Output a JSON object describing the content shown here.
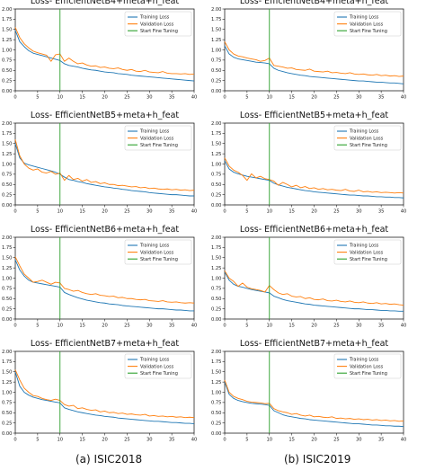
{
  "captions": {
    "left": "(a) ISIC2018",
    "right": "(b) ISIC2019"
  },
  "colors": {
    "training": "#1f77b4",
    "validation": "#ff7f0e",
    "fine_tuning": "#2ca02c"
  },
  "chart_data": [
    {
      "type": "line",
      "title": "Loss- EfficientNetB4+meta+h_feat",
      "dataset": "ISIC2018",
      "xlim": [
        0,
        40
      ],
      "ylim": [
        0,
        2.0
      ],
      "xticks": [
        "0",
        "5",
        "10",
        "15",
        "20",
        "25",
        "30",
        "35",
        "40"
      ],
      "yticks": [
        "0.00",
        "0.25",
        "0.50",
        "0.75",
        "1.00",
        "1.25",
        "1.50",
        "1.75",
        "2.00"
      ],
      "legend": [
        "Training Loss",
        "Validation Loss",
        "Start Fine Tuning"
      ],
      "legend_position": "top-right",
      "fine_tuning_epoch": 10,
      "series": [
        {
          "name": "Training Loss",
          "values": [
            1.48,
            1.2,
            1.08,
            0.98,
            0.92,
            0.89,
            0.86,
            0.83,
            0.8,
            0.77,
            0.74,
            0.66,
            0.62,
            0.6,
            0.58,
            0.55,
            0.53,
            0.51,
            0.5,
            0.48,
            0.46,
            0.45,
            0.44,
            0.42,
            0.41,
            0.4,
            0.38,
            0.37,
            0.36,
            0.35,
            0.34,
            0.33,
            0.32,
            0.31,
            0.3,
            0.29,
            0.28,
            0.27,
            0.26,
            0.25,
            0.24
          ]
        },
        {
          "name": "Validation Loss",
          "values": [
            1.55,
            1.3,
            1.15,
            1.05,
            0.97,
            0.93,
            0.9,
            0.87,
            0.72,
            0.88,
            0.9,
            0.72,
            0.8,
            0.72,
            0.66,
            0.68,
            0.63,
            0.6,
            0.61,
            0.57,
            0.58,
            0.55,
            0.54,
            0.56,
            0.52,
            0.5,
            0.52,
            0.48,
            0.47,
            0.5,
            0.46,
            0.45,
            0.44,
            0.47,
            0.43,
            0.42,
            0.42,
            0.41,
            0.42,
            0.4,
            0.41
          ]
        }
      ]
    },
    {
      "type": "line",
      "title": "Loss- EfficientNetB4+meta+h_feat",
      "dataset": "ISIC2019",
      "xlim": [
        0,
        40
      ],
      "ylim": [
        0,
        2.0
      ],
      "xticks": [
        "0",
        "5",
        "10",
        "15",
        "20",
        "25",
        "30",
        "35",
        "40"
      ],
      "yticks": [
        "0.00",
        "0.25",
        "0.50",
        "0.75",
        "1.00",
        "1.25",
        "1.50",
        "1.75",
        "2.00"
      ],
      "legend": [
        "Training Loss",
        "Validation Loss",
        "Start Fine Tuning"
      ],
      "legend_position": "top-right",
      "fine_tuning_epoch": 10,
      "series": [
        {
          "name": "Training Loss",
          "values": [
            1.1,
            0.9,
            0.82,
            0.78,
            0.76,
            0.74,
            0.72,
            0.7,
            0.69,
            0.68,
            0.66,
            0.55,
            0.5,
            0.47,
            0.44,
            0.42,
            0.4,
            0.38,
            0.37,
            0.35,
            0.34,
            0.33,
            0.32,
            0.31,
            0.3,
            0.29,
            0.28,
            0.27,
            0.26,
            0.25,
            0.24,
            0.24,
            0.23,
            0.22,
            0.21,
            0.21,
            0.2,
            0.19,
            0.19,
            0.18,
            0.17
          ]
        },
        {
          "name": "Validation Loss",
          "values": [
            1.2,
            1.0,
            0.9,
            0.85,
            0.83,
            0.8,
            0.78,
            0.76,
            0.72,
            0.74,
            0.8,
            0.62,
            0.6,
            0.58,
            0.55,
            0.56,
            0.52,
            0.51,
            0.5,
            0.53,
            0.48,
            0.47,
            0.46,
            0.48,
            0.44,
            0.45,
            0.43,
            0.42,
            0.44,
            0.41,
            0.4,
            0.41,
            0.39,
            0.38,
            0.4,
            0.37,
            0.38,
            0.36,
            0.37,
            0.35,
            0.36
          ]
        }
      ]
    },
    {
      "type": "line",
      "title": "Loss- EfficientNetB5+meta+h_feat",
      "dataset": "ISIC2018",
      "xlim": [
        0,
        40
      ],
      "ylim": [
        0,
        2.0
      ],
      "xticks": [
        "0",
        "5",
        "10",
        "15",
        "20",
        "25",
        "30",
        "35",
        "40"
      ],
      "yticks": [
        "0.00",
        "0.25",
        "0.50",
        "0.75",
        "1.00",
        "1.25",
        "1.50",
        "1.75",
        "2.00"
      ],
      "legend": [
        "Training Loss",
        "Validation Loss",
        "Start Fine Tuning"
      ],
      "legend_position": "top-right",
      "fine_tuning_epoch": 10,
      "series": [
        {
          "name": "Training Loss",
          "values": [
            1.5,
            1.15,
            1.02,
            0.98,
            0.95,
            0.92,
            0.89,
            0.86,
            0.83,
            0.8,
            0.75,
            0.68,
            0.62,
            0.6,
            0.57,
            0.55,
            0.52,
            0.5,
            0.48,
            0.46,
            0.44,
            0.43,
            0.41,
            0.4,
            0.38,
            0.37,
            0.35,
            0.34,
            0.33,
            0.32,
            0.3,
            0.29,
            0.28,
            0.27,
            0.26,
            0.25,
            0.25,
            0.24,
            0.23,
            0.22,
            0.22
          ]
        },
        {
          "name": "Validation Loss",
          "values": [
            1.6,
            1.2,
            1.0,
            0.9,
            0.85,
            0.88,
            0.8,
            0.78,
            0.82,
            0.75,
            0.78,
            0.6,
            0.72,
            0.62,
            0.65,
            0.58,
            0.62,
            0.55,
            0.57,
            0.52,
            0.54,
            0.5,
            0.5,
            0.47,
            0.48,
            0.46,
            0.44,
            0.45,
            0.42,
            0.43,
            0.4,
            0.41,
            0.39,
            0.38,
            0.39,
            0.37,
            0.38,
            0.36,
            0.37,
            0.35,
            0.36
          ]
        }
      ]
    },
    {
      "type": "line",
      "title": "Loss- EfficientNetB5+meta+h_feat",
      "dataset": "ISIC2019",
      "xlim": [
        0,
        40
      ],
      "ylim": [
        0,
        2.0
      ],
      "xticks": [
        "0",
        "5",
        "10",
        "15",
        "20",
        "25",
        "30",
        "35",
        "40"
      ],
      "yticks": [
        "0.00",
        "0.25",
        "0.50",
        "0.75",
        "1.00",
        "1.25",
        "1.50",
        "1.75",
        "2.00"
      ],
      "legend": [
        "Training Loss",
        "Validation Loss",
        "Start Fine Tuning"
      ],
      "legend_position": "top-right",
      "fine_tuning_epoch": 10,
      "series": [
        {
          "name": "Training Loss",
          "values": [
            1.08,
            0.88,
            0.8,
            0.76,
            0.73,
            0.7,
            0.68,
            0.66,
            0.64,
            0.62,
            0.6,
            0.53,
            0.49,
            0.46,
            0.43,
            0.41,
            0.39,
            0.37,
            0.35,
            0.34,
            0.32,
            0.31,
            0.3,
            0.29,
            0.28,
            0.27,
            0.26,
            0.25,
            0.24,
            0.24,
            0.23,
            0.22,
            0.22,
            0.21,
            0.2,
            0.2,
            0.19,
            0.19,
            0.18,
            0.18,
            0.17
          ]
        },
        {
          "name": "Validation Loss",
          "values": [
            1.15,
            0.95,
            0.85,
            0.8,
            0.72,
            0.6,
            0.76,
            0.66,
            0.7,
            0.64,
            0.62,
            0.58,
            0.48,
            0.55,
            0.5,
            0.44,
            0.48,
            0.42,
            0.45,
            0.4,
            0.42,
            0.38,
            0.4,
            0.37,
            0.38,
            0.36,
            0.35,
            0.38,
            0.34,
            0.33,
            0.36,
            0.32,
            0.33,
            0.31,
            0.32,
            0.3,
            0.31,
            0.3,
            0.29,
            0.3,
            0.29
          ]
        }
      ]
    },
    {
      "type": "line",
      "title": "Loss- EfficientNetB6+meta+h_feat",
      "dataset": "ISIC2018",
      "xlim": [
        0,
        40
      ],
      "ylim": [
        0,
        2.0
      ],
      "xticks": [
        "0",
        "5",
        "10",
        "15",
        "20",
        "25",
        "30",
        "35",
        "40"
      ],
      "yticks": [
        "0.00",
        "0.25",
        "0.50",
        "0.75",
        "1.00",
        "1.25",
        "1.50",
        "1.75",
        "2.00"
      ],
      "legend": [
        "Training Loss",
        "Validation Loss",
        "Start Fine Tuning"
      ],
      "legend_position": "top-right",
      "fine_tuning_epoch": 10,
      "series": [
        {
          "name": "Training Loss",
          "values": [
            1.45,
            1.2,
            1.05,
            0.95,
            0.9,
            0.88,
            0.86,
            0.84,
            0.82,
            0.8,
            0.78,
            0.65,
            0.6,
            0.56,
            0.52,
            0.49,
            0.46,
            0.44,
            0.42,
            0.4,
            0.39,
            0.37,
            0.36,
            0.35,
            0.33,
            0.32,
            0.31,
            0.3,
            0.29,
            0.28,
            0.27,
            0.26,
            0.25,
            0.25,
            0.24,
            0.23,
            0.22,
            0.22,
            0.21,
            0.2,
            0.2
          ]
        },
        {
          "name": "Validation Loss",
          "values": [
            1.52,
            1.3,
            1.1,
            1.0,
            0.9,
            0.92,
            0.95,
            0.9,
            0.85,
            0.9,
            0.88,
            0.75,
            0.72,
            0.68,
            0.7,
            0.65,
            0.62,
            0.6,
            0.62,
            0.58,
            0.57,
            0.55,
            0.56,
            0.52,
            0.53,
            0.5,
            0.5,
            0.48,
            0.47,
            0.48,
            0.45,
            0.44,
            0.43,
            0.45,
            0.42,
            0.41,
            0.42,
            0.4,
            0.39,
            0.4,
            0.39
          ]
        }
      ]
    },
    {
      "type": "line",
      "title": "Loss- EfficientNetB6+meta+h_feat",
      "dataset": "ISIC2019",
      "xlim": [
        0,
        40
      ],
      "ylim": [
        0,
        2.0
      ],
      "xticks": [
        "0",
        "5",
        "10",
        "15",
        "20",
        "25",
        "30",
        "35",
        "40"
      ],
      "yticks": [
        "0.00",
        "0.25",
        "0.50",
        "0.75",
        "1.00",
        "1.25",
        "1.50",
        "1.75",
        "2.00"
      ],
      "legend": [
        "Training Loss",
        "Validation Loss",
        "Start Fine Tuning"
      ],
      "legend_position": "top-right",
      "fine_tuning_epoch": 10,
      "series": [
        {
          "name": "Training Loss",
          "values": [
            1.15,
            0.95,
            0.85,
            0.8,
            0.78,
            0.75,
            0.72,
            0.7,
            0.68,
            0.66,
            0.64,
            0.56,
            0.52,
            0.48,
            0.45,
            0.43,
            0.41,
            0.39,
            0.37,
            0.36,
            0.34,
            0.33,
            0.32,
            0.31,
            0.3,
            0.29,
            0.28,
            0.27,
            0.26,
            0.25,
            0.25,
            0.24,
            0.23,
            0.23,
            0.22,
            0.21,
            0.21,
            0.2,
            0.2,
            0.19,
            0.19
          ]
        },
        {
          "name": "Validation Loss",
          "values": [
            1.18,
            1.0,
            0.92,
            0.8,
            0.88,
            0.78,
            0.74,
            0.72,
            0.7,
            0.66,
            0.82,
            0.72,
            0.64,
            0.6,
            0.62,
            0.56,
            0.54,
            0.55,
            0.5,
            0.52,
            0.48,
            0.47,
            0.49,
            0.45,
            0.44,
            0.46,
            0.43,
            0.42,
            0.44,
            0.41,
            0.4,
            0.42,
            0.39,
            0.38,
            0.4,
            0.37,
            0.38,
            0.36,
            0.37,
            0.35,
            0.34
          ]
        }
      ]
    },
    {
      "type": "line",
      "title": "Loss- EfficientNetB7+meta+h_feat",
      "dataset": "ISIC2018",
      "xlim": [
        0,
        40
      ],
      "ylim": [
        0,
        2.0
      ],
      "xticks": [
        "0",
        "5",
        "10",
        "15",
        "20",
        "25",
        "30",
        "35",
        "40"
      ],
      "yticks": [
        "0.00",
        "0.25",
        "0.50",
        "0.75",
        "1.00",
        "1.25",
        "1.50",
        "1.75",
        "2.00"
      ],
      "legend": [
        "Training Loss",
        "Validation Loss",
        "Start Fine Tuning"
      ],
      "legend_position": "top-right",
      "fine_tuning_epoch": 10,
      "series": [
        {
          "name": "Training Loss",
          "values": [
            1.5,
            1.15,
            1.0,
            0.93,
            0.88,
            0.85,
            0.82,
            0.8,
            0.78,
            0.76,
            0.74,
            0.62,
            0.58,
            0.55,
            0.52,
            0.5,
            0.48,
            0.46,
            0.44,
            0.43,
            0.41,
            0.4,
            0.39,
            0.37,
            0.36,
            0.35,
            0.34,
            0.33,
            0.32,
            0.31,
            0.3,
            0.29,
            0.29,
            0.28,
            0.27,
            0.26,
            0.26,
            0.25,
            0.24,
            0.24,
            0.23
          ]
        },
        {
          "name": "Validation Loss",
          "values": [
            1.55,
            1.3,
            1.1,
            1.0,
            0.92,
            0.9,
            0.85,
            0.82,
            0.8,
            0.83,
            0.8,
            0.7,
            0.66,
            0.68,
            0.6,
            0.62,
            0.58,
            0.56,
            0.57,
            0.52,
            0.54,
            0.5,
            0.51,
            0.48,
            0.49,
            0.46,
            0.47,
            0.45,
            0.44,
            0.46,
            0.42,
            0.43,
            0.41,
            0.42,
            0.4,
            0.41,
            0.39,
            0.4,
            0.38,
            0.39,
            0.38
          ]
        }
      ]
    },
    {
      "type": "line",
      "title": "Loss- EfficientNetB7+meta+h_feat",
      "dataset": "ISIC2019",
      "xlim": [
        0,
        40
      ],
      "ylim": [
        0,
        2.0
      ],
      "xticks": [
        "0",
        "5",
        "10",
        "15",
        "20",
        "25",
        "30",
        "35",
        "40"
      ],
      "yticks": [
        "0.00",
        "0.25",
        "0.50",
        "0.75",
        "1.00",
        "1.25",
        "1.50",
        "1.75",
        "2.00"
      ],
      "legend": [
        "Training Loss",
        "Validation Loss",
        "Start Fine Tuning"
      ],
      "legend_position": "top-right",
      "fine_tuning_epoch": 10,
      "series": [
        {
          "name": "Training Loss",
          "values": [
            1.25,
            0.95,
            0.85,
            0.8,
            0.77,
            0.75,
            0.73,
            0.72,
            0.71,
            0.7,
            0.68,
            0.55,
            0.5,
            0.45,
            0.42,
            0.4,
            0.38,
            0.36,
            0.35,
            0.33,
            0.32,
            0.31,
            0.3,
            0.29,
            0.28,
            0.27,
            0.26,
            0.25,
            0.24,
            0.23,
            0.23,
            0.22,
            0.21,
            0.2,
            0.2,
            0.19,
            0.18,
            0.18,
            0.17,
            0.17,
            0.16
          ]
        },
        {
          "name": "Validation Loss",
          "values": [
            1.3,
            1.0,
            0.9,
            0.85,
            0.82,
            0.78,
            0.76,
            0.75,
            0.74,
            0.72,
            0.73,
            0.6,
            0.55,
            0.52,
            0.5,
            0.46,
            0.48,
            0.44,
            0.42,
            0.44,
            0.4,
            0.41,
            0.39,
            0.38,
            0.4,
            0.36,
            0.37,
            0.35,
            0.36,
            0.34,
            0.35,
            0.33,
            0.34,
            0.32,
            0.33,
            0.31,
            0.32,
            0.3,
            0.31,
            0.29,
            0.3
          ]
        }
      ]
    }
  ]
}
